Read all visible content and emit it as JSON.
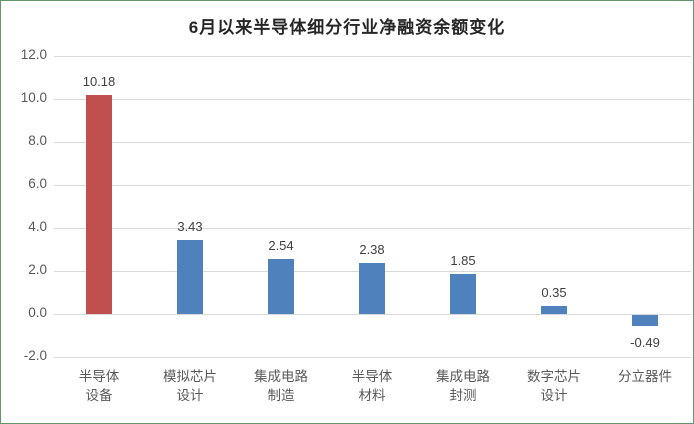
{
  "chart_data": {
    "type": "bar",
    "title": "6月以来半导体细分行业净融资余额变化",
    "categories": [
      [
        "半导体",
        "设备"
      ],
      [
        "模拟芯片",
        "设计"
      ],
      [
        "集成电路",
        "制造"
      ],
      [
        "半导体",
        "材料"
      ],
      [
        "集成电路",
        "封测"
      ],
      [
        "数字芯片",
        "设计"
      ],
      [
        "分立器件"
      ]
    ],
    "values": [
      10.18,
      3.43,
      2.54,
      2.38,
      1.85,
      0.35,
      -0.49
    ],
    "data_labels": [
      "10.18",
      "3.43",
      "2.54",
      "2.38",
      "1.85",
      "0.35",
      "-0.49"
    ],
    "bar_colors": [
      "#C0504D",
      "#4F81BD",
      "#4F81BD",
      "#4F81BD",
      "#4F81BD",
      "#4F81BD",
      "#4F81BD"
    ],
    "xlabel": "",
    "ylabel": "",
    "ylim": [
      -2.0,
      12.0
    ],
    "ytick_step": 2.0,
    "ytick_labels": [
      "-2.0",
      "0.0",
      "2.0",
      "4.0",
      "6.0",
      "8.0",
      "10.0",
      "12.0"
    ],
    "grid": true,
    "legend_position": "none",
    "colors": {
      "accent_red": "#C0504D",
      "accent_blue": "#4F81BD",
      "gridline": "#D9D9D9",
      "axis_text": "#595959",
      "value_label_text": "#404040",
      "title_text": "#262626",
      "frame_border": "#66976C",
      "background": "#FFFFFF"
    }
  }
}
